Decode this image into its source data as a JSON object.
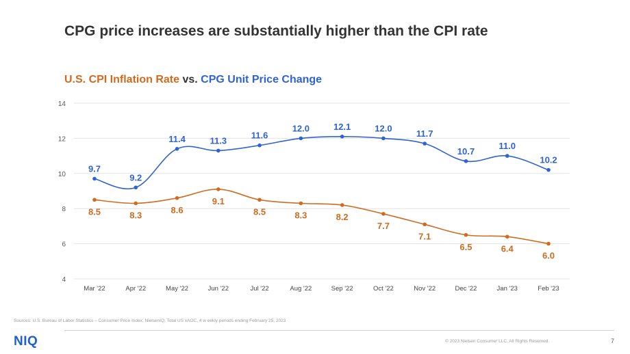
{
  "slide": {
    "title": "CPG price increases are substantially higher than the CPI rate",
    "page_number": "7",
    "logo_text": "NIQ",
    "source": "Sources: U.S. Bureau of Labor Statistics – Consumer Price Index; NielsenIQ, Total US xAOC, 4 w eekly periods ending February 25, 2023",
    "copyright": "© 2023 Nielsen Consumer LLC. All Rights Reserved."
  },
  "chart_title": {
    "part1": "U.S. CPI Inflation Rate",
    "part2": " vs. ",
    "part3": "CPG Unit Price Change"
  },
  "colors": {
    "cpi": "#cf6b1f",
    "cpg": "#2f62d4",
    "grid": "#e3e3e3",
    "axis_text": "#555555"
  },
  "chart_data": {
    "type": "line",
    "title": "U.S. CPI Inflation Rate vs. CPG Unit Price Change",
    "categories": [
      "Mar '22",
      "Apr '22",
      "May '22",
      "Jun '22",
      "Jul '22",
      "Aug '22",
      "Sep '22",
      "Oct '22",
      "Nov '22",
      "Dec '22",
      "Jan '23",
      "Feb '23"
    ],
    "yticks": [
      4,
      6,
      8,
      10,
      12,
      14
    ],
    "ylim": [
      4,
      14
    ],
    "grid": true,
    "series": [
      {
        "name": "CPG Unit Price Change",
        "color": "#2f62d4",
        "values": [
          9.7,
          9.2,
          11.4,
          11.3,
          11.6,
          12.0,
          12.1,
          12.0,
          11.7,
          10.7,
          11.0,
          10.2
        ],
        "labels": [
          "9.7",
          "9.2",
          "11.4",
          "11.3",
          "11.6",
          "12.0",
          "12.1",
          "12.0",
          "11.7",
          "10.7",
          "11.0",
          "10.2"
        ],
        "label_position": "above"
      },
      {
        "name": "U.S. CPI Inflation Rate",
        "color": "#cf6b1f",
        "values": [
          8.5,
          8.3,
          8.6,
          9.1,
          8.5,
          8.3,
          8.2,
          7.7,
          7.1,
          6.5,
          6.4,
          6.0
        ],
        "labels": [
          "8.5",
          "8.3",
          "8.6",
          "9.1",
          "8.5",
          "8.3",
          "8.2",
          "7.7",
          "7.1",
          "6.5",
          "6.4",
          "6.0"
        ],
        "label_position": "below"
      }
    ]
  }
}
